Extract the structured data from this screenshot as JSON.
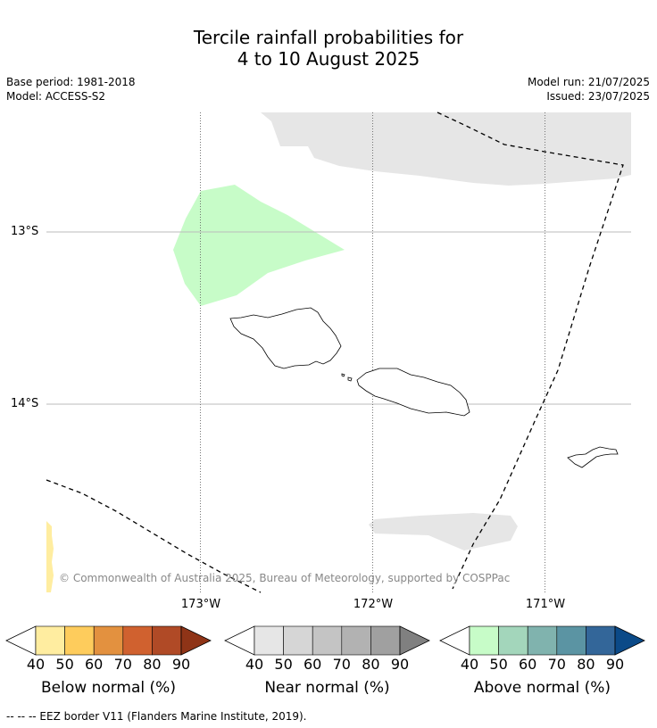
{
  "title": {
    "line1": "Tercile rainfall probabilities for",
    "line2": "4 to 10 August 2025"
  },
  "meta": {
    "base_period": "Base period: 1981-2018",
    "model": "Model: ACCESS-S2",
    "model_run": "Model run: 21/07/2025",
    "issued": "Issued: 23/07/2025"
  },
  "map": {
    "lat_labels": [
      "13°S",
      "14°S"
    ],
    "lon_labels": [
      "173°W",
      "172°W",
      "171°W"
    ],
    "copyright": "© Commonwealth of Australia 2025, Bureau of Meteorology, supported by COSPPac"
  },
  "colorbars": [
    {
      "name": "Below normal (%)",
      "ticks": [
        "40",
        "50",
        "60",
        "70",
        "80",
        "90"
      ],
      "colors": [
        "#ffeda0",
        "#fecc5c",
        "#e3913f",
        "#d0612f",
        "#b04a26",
        "#8f3417"
      ]
    },
    {
      "name": "Near normal (%)",
      "ticks": [
        "40",
        "50",
        "60",
        "70",
        "80",
        "90"
      ],
      "colors": [
        "#e6e6e6",
        "#d6d6d6",
        "#c4c4c4",
        "#b2b2b2",
        "#a0a0a0",
        "#808080"
      ]
    },
    {
      "name": "Above normal (%)",
      "ticks": [
        "40",
        "50",
        "60",
        "70",
        "80",
        "90"
      ],
      "colors": [
        "#c7fcc8",
        "#a3d6bb",
        "#80b3ae",
        "#5b94a3",
        "#336699",
        "#0b4a88"
      ]
    }
  ],
  "footer": "--  --  -- EEZ border V11 (Flanders Marine Institute, 2019)."
}
